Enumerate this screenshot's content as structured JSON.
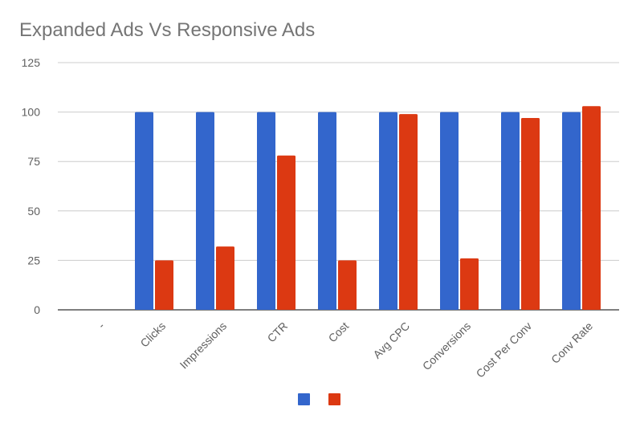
{
  "chart_data": {
    "type": "bar",
    "title": "Expanded Ads Vs Responsive Ads",
    "xlabel": "",
    "ylabel": "",
    "categories": [
      "-",
      "Clicks",
      "Impressions",
      "CTR",
      "Cost",
      "Avg CPC",
      "Conversions",
      "Cost Per Conv",
      "Conv Rate"
    ],
    "series": [
      {
        "color": "#3366cc",
        "values": [
          null,
          100,
          100,
          100,
          100,
          100,
          100,
          100,
          100
        ]
      },
      {
        "color": "#dc3912",
        "values": [
          null,
          25,
          32,
          78,
          25,
          99,
          26,
          97,
          103
        ]
      }
    ],
    "ylim": [
      0,
      125
    ],
    "yticks": [
      0,
      25,
      50,
      75,
      100,
      125
    ],
    "grid": true,
    "legend": "bottom"
  }
}
